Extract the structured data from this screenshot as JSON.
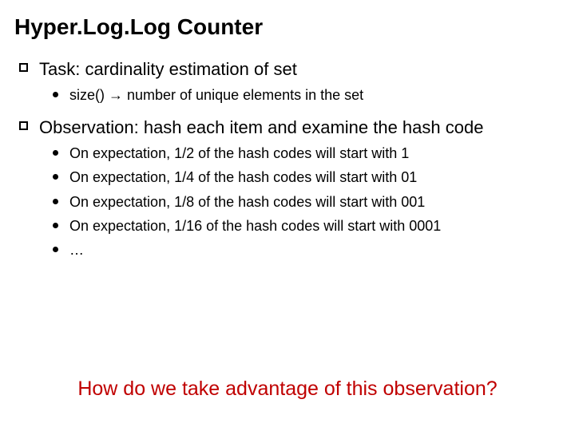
{
  "title": "Hyper.Log.Log Counter",
  "items": [
    {
      "text": "Task: cardinality estimation of set",
      "sub": [
        "size() → number of unique elements in the set"
      ]
    },
    {
      "text": "Observation: hash each item and examine the hash code",
      "sub": [
        "On expectation, 1/2 of the hash codes will start with 1",
        "On expectation, 1/4 of the hash codes will start with 01",
        "On expectation, 1/8 of the hash codes will start with 001",
        "On expectation, 1/16 of the hash codes will start with 0001",
        "…"
      ]
    }
  ],
  "question": "How do we take advantage of this observation?",
  "colors": {
    "text": "#000000",
    "question": "#c00000",
    "background": "#ffffff"
  },
  "fonts": {
    "title_size": 28,
    "level1_size": 22,
    "level2_size": 18,
    "question_size": 25
  }
}
